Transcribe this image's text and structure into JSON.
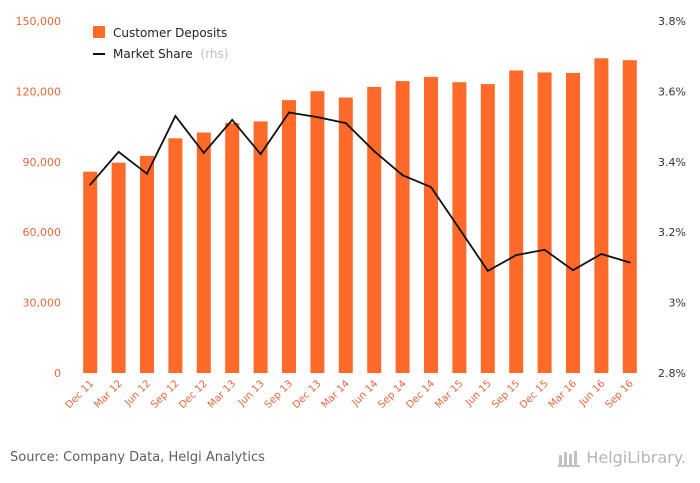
{
  "chart_data": {
    "type": "bar",
    "categories": [
      "Dec 11",
      "Mar 12",
      "Jun 12",
      "Sep 12",
      "Dec 12",
      "Mar 13",
      "Jun 13",
      "Sep 13",
      "Dec 13",
      "Mar 14",
      "Jun 14",
      "Sep 14",
      "Dec 14",
      "Mar 15",
      "Jun 15",
      "Sep 15",
      "Dec 15",
      "Mar 16",
      "Jun 16",
      "Sep 16"
    ],
    "series": [
      {
        "name": "Customer Deposits",
        "kind": "bar",
        "axis": "left",
        "color": "#ff6a2b",
        "values": [
          85800,
          89600,
          92500,
          100000,
          102500,
          106500,
          107200,
          116300,
          120100,
          117400,
          121900,
          124400,
          126200,
          123900,
          123100,
          128900,
          128100,
          127900,
          134100,
          133300
        ]
      },
      {
        "name": "Market Share",
        "note": "(rhs)",
        "kind": "line",
        "axis": "right",
        "color": "#111111",
        "values": [
          3.335,
          3.428,
          3.366,
          3.53,
          3.425,
          3.519,
          3.422,
          3.54,
          3.527,
          3.51,
          3.43,
          3.362,
          3.328,
          3.21,
          3.09,
          3.135,
          3.15,
          3.092,
          3.138,
          3.114
        ]
      }
    ],
    "yticks_left": [
      "0",
      "30,000",
      "60,000",
      "90,000",
      "120,000",
      "150,000"
    ],
    "ylim_left": [
      0,
      150000
    ],
    "yticks_right": [
      "2.8%",
      "3%",
      "3.2%",
      "3.4%",
      "3.6%",
      "3.8%"
    ],
    "ylim_right": [
      2.8,
      3.8
    ],
    "legend": {
      "position": "top-left"
    },
    "grid": false
  },
  "footer": {
    "source": "Source: Company Data, Helgi Analytics",
    "logo": "HelgiLibrary."
  }
}
